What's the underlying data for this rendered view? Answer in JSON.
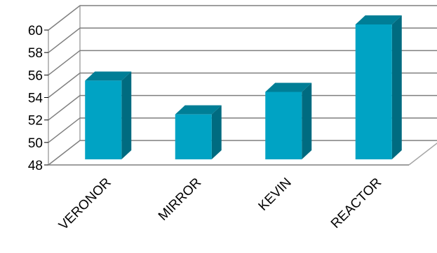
{
  "chart_data": {
    "type": "bar",
    "categories": [
      "VERONOR",
      "MIRROR",
      "KEVIN",
      "REACTOR"
    ],
    "values": [
      55,
      52,
      54,
      60
    ],
    "ylim": [
      48,
      60
    ],
    "yticks": [
      48,
      50,
      52,
      54,
      56,
      58,
      60
    ],
    "grid": true,
    "legend": "none",
    "colors": {
      "bar_front": "#00A3C4",
      "bar_side": "#006B80",
      "bar_top": "#007E96",
      "grid": "#7F7F7F",
      "wall": "#A6A6A6"
    }
  }
}
